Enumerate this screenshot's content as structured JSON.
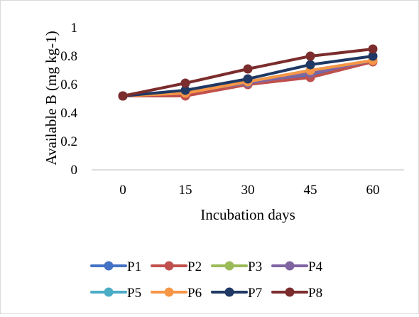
{
  "chart_data": {
    "type": "line",
    "title": "",
    "xlabel": "Incubation days",
    "ylabel": "Available B (mg kg-1)",
    "categories": [
      "0",
      "15",
      "30",
      "45",
      "60"
    ],
    "ylim": [
      0,
      1
    ],
    "yticks": [
      "0",
      "0.2",
      "0.4",
      "0.6",
      "0.8",
      "1"
    ],
    "grid": false,
    "legend_position": "bottom",
    "series": [
      {
        "name": "P1",
        "color": "#4472C4",
        "values": [
          0.52,
          0.55,
          0.61,
          0.67,
          0.77
        ]
      },
      {
        "name": "P2",
        "color": "#C0504D",
        "values": [
          0.52,
          0.52,
          0.6,
          0.65,
          0.76
        ]
      },
      {
        "name": "P3",
        "color": "#9BBB59",
        "values": [
          0.52,
          0.55,
          0.61,
          0.68,
          0.77
        ]
      },
      {
        "name": "P4",
        "color": "#8064A2",
        "values": [
          0.52,
          0.55,
          0.61,
          0.68,
          0.77
        ]
      },
      {
        "name": "P5",
        "color": "#4BACC6",
        "values": [
          0.52,
          0.55,
          0.62,
          0.7,
          0.77
        ]
      },
      {
        "name": "P6",
        "color": "#F79646",
        "values": [
          0.52,
          0.54,
          0.62,
          0.7,
          0.77
        ]
      },
      {
        "name": "P7",
        "color": "#1F3864",
        "values": [
          0.52,
          0.56,
          0.64,
          0.74,
          0.8
        ]
      },
      {
        "name": "P8",
        "color": "#7B2C2C",
        "values": [
          0.52,
          0.61,
          0.71,
          0.8,
          0.85
        ]
      }
    ]
  }
}
